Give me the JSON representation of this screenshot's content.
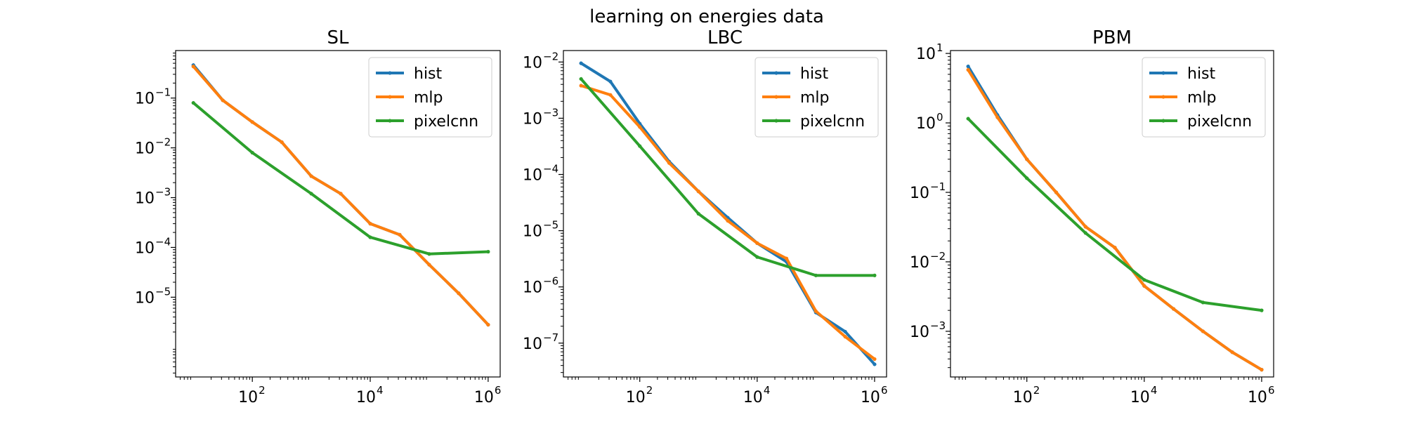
{
  "figure": {
    "suptitle": "learning on energies data"
  },
  "colors": {
    "hist": "#1f77b4",
    "mlp": "#ff7f0e",
    "pixelcnn": "#2ca02c"
  },
  "chart_data": [
    {
      "type": "line",
      "title": "SL",
      "xscale": "log",
      "yscale": "log",
      "xlim": [
        5,
        1600000
      ],
      "ylim": [
        2.5e-07,
        0.9
      ],
      "xticks": [
        {
          "v": 100,
          "m": "10",
          "e": "2"
        },
        {
          "v": 10000,
          "m": "10",
          "e": "4"
        },
        {
          "v": 1000000,
          "m": "10",
          "e": "6"
        }
      ],
      "yticks": [
        {
          "v": 0.1,
          "m": "10",
          "e": "−1"
        },
        {
          "v": 0.01,
          "m": "10",
          "e": "−2"
        },
        {
          "v": 0.001,
          "m": "10",
          "e": "−3"
        },
        {
          "v": 0.0001,
          "m": "10",
          "e": "−4"
        },
        {
          "v": 1e-05,
          "m": "10",
          "e": "−5"
        }
      ],
      "legend_position": "upper right",
      "x": [
        10,
        31.6,
        100,
        316,
        1000,
        3160,
        10000,
        31600,
        100000,
        316000,
        1000000
      ],
      "series": [
        {
          "name": "hist",
          "color_key": "hist",
          "values": [
            0.46,
            0.09,
            0.033,
            0.013,
            0.0027,
            0.0012,
            0.0003,
            0.00018,
            4.5e-05,
            1.2e-05,
            2.8e-06
          ]
        },
        {
          "name": "mlp",
          "color_key": "mlp",
          "values": [
            0.43,
            0.09,
            0.033,
            0.013,
            0.0027,
            0.0012,
            0.0003,
            0.00018,
            4.5e-05,
            1.2e-05,
            2.8e-06
          ]
        },
        {
          "name": "pixelcnn",
          "color_key": "pixelcnn",
          "values": [
            0.08,
            null,
            0.008,
            null,
            0.0012,
            null,
            0.00016,
            null,
            7.4e-05,
            null,
            8.2e-05
          ]
        }
      ]
    },
    {
      "type": "line",
      "title": "LBC",
      "xscale": "log",
      "yscale": "log",
      "xlim": [
        5,
        1600000
      ],
      "ylim": [
        2.5e-08,
        0.016
      ],
      "xticks": [
        {
          "v": 100,
          "m": "10",
          "e": "2"
        },
        {
          "v": 10000,
          "m": "10",
          "e": "4"
        },
        {
          "v": 1000000,
          "m": "10",
          "e": "6"
        }
      ],
      "yticks": [
        {
          "v": 0.01,
          "m": "10",
          "e": "−2"
        },
        {
          "v": 0.001,
          "m": "10",
          "e": "−3"
        },
        {
          "v": 0.0001,
          "m": "10",
          "e": "−4"
        },
        {
          "v": 1e-05,
          "m": "10",
          "e": "−5"
        },
        {
          "v": 1e-06,
          "m": "10",
          "e": "−6"
        },
        {
          "v": 1e-07,
          "m": "10",
          "e": "−7"
        }
      ],
      "legend_position": "upper right",
      "x": [
        10,
        31.6,
        100,
        316,
        1000,
        3160,
        10000,
        31600,
        100000,
        316000,
        1000000
      ],
      "series": [
        {
          "name": "hist",
          "color_key": "hist",
          "values": [
            0.0095,
            0.0045,
            0.0008,
            0.00017,
            5e-05,
            1.7e-05,
            6e-06,
            2.8e-06,
            3.5e-07,
            1.6e-07,
            4.2e-08
          ]
        },
        {
          "name": "mlp",
          "color_key": "mlp",
          "values": [
            0.0038,
            0.0026,
            0.0007,
            0.00016,
            5e-05,
            1.5e-05,
            6e-06,
            3.2e-06,
            3.7e-07,
            1.3e-07,
            5.2e-08
          ]
        },
        {
          "name": "pixelcnn",
          "color_key": "pixelcnn",
          "values": [
            0.005,
            null,
            0.00032,
            null,
            2e-05,
            null,
            3.4e-06,
            null,
            1.6e-06,
            null,
            1.6e-06
          ]
        }
      ]
    },
    {
      "type": "line",
      "title": "PBM",
      "xscale": "log",
      "yscale": "log",
      "xlim": [
        5,
        1600000
      ],
      "ylim": [
        0.00022,
        11
      ],
      "xticks": [
        {
          "v": 100,
          "m": "10",
          "e": "2"
        },
        {
          "v": 10000,
          "m": "10",
          "e": "4"
        },
        {
          "v": 1000000,
          "m": "10",
          "e": "6"
        }
      ],
      "yticks": [
        {
          "v": 10,
          "m": "10",
          "e": "1"
        },
        {
          "v": 1,
          "m": "10",
          "e": "0"
        },
        {
          "v": 0.1,
          "m": "10",
          "e": "−1"
        },
        {
          "v": 0.01,
          "m": "10",
          "e": "−2"
        },
        {
          "v": 0.001,
          "m": "10",
          "e": "−3"
        }
      ],
      "legend_position": "upper right",
      "x": [
        10,
        31.6,
        100,
        316,
        1000,
        3160,
        10000,
        31600,
        100000,
        316000,
        1000000
      ],
      "series": [
        {
          "name": "hist",
          "color_key": "hist",
          "values": [
            6.5,
            1.3,
            0.3,
            0.1,
            0.032,
            0.016,
            0.0045,
            0.0021,
            0.001,
            0.0005,
            0.00028
          ]
        },
        {
          "name": "mlp",
          "color_key": "mlp",
          "values": [
            5.8,
            1.2,
            0.3,
            0.1,
            0.032,
            0.016,
            0.0045,
            0.0021,
            0.001,
            0.0005,
            0.00028
          ]
        },
        {
          "name": "pixelcnn",
          "color_key": "pixelcnn",
          "values": [
            1.15,
            null,
            0.16,
            null,
            0.026,
            null,
            0.0055,
            null,
            0.0026,
            null,
            0.002
          ]
        }
      ]
    }
  ]
}
